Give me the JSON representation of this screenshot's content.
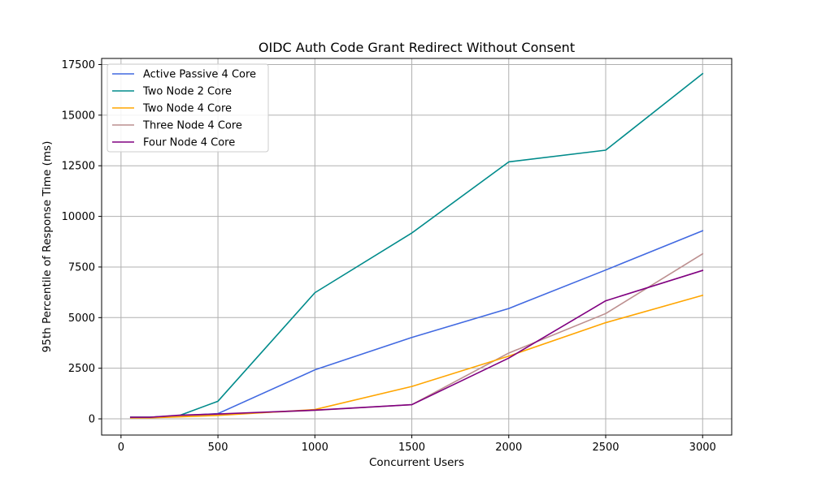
{
  "chart_data": {
    "type": "line",
    "title": "OIDC Auth Code Grant Redirect Without Consent",
    "xlabel": "Concurrent Users",
    "ylabel": "95th Percentile of Response Time (ms)",
    "xlim": [
      -100,
      3150
    ],
    "ylim": [
      -800,
      17800
    ],
    "x_ticks": [
      0,
      500,
      1000,
      1500,
      2000,
      2500,
      3000
    ],
    "y_ticks": [
      0,
      2500,
      5000,
      7500,
      10000,
      12500,
      15000,
      17500
    ],
    "grid": true,
    "legend_position": "top-left",
    "x": [
      50,
      150,
      300,
      500,
      1000,
      1500,
      2000,
      2500,
      3000
    ],
    "series": [
      {
        "name": "Active Passive 4 Core",
        "color": "#4169e1",
        "values": [
          80,
          80,
          150,
          260,
          2420,
          4020,
          5450,
          7350,
          9290
        ]
      },
      {
        "name": "Two Node 2 Core",
        "color": "#008b8b",
        "values": [
          80,
          80,
          160,
          870,
          6230,
          9180,
          12690,
          13270,
          17050
        ]
      },
      {
        "name": "Three Node 4 Core",
        "color": "#bc8f8f",
        "values": [
          50,
          60,
          130,
          220,
          420,
          700,
          3250,
          5200,
          8150
        ]
      },
      {
        "name": "Two Node 4 Core",
        "color": "#ffa500",
        "values": [
          50,
          50,
          100,
          170,
          460,
          1600,
          3100,
          4750,
          6100
        ]
      },
      {
        "name": "Four Node 4 Core",
        "color": "#800080",
        "values": [
          80,
          80,
          180,
          240,
          430,
          700,
          3000,
          5830,
          7330
        ]
      }
    ],
    "legend_order": [
      "Active Passive 4 Core",
      "Two Node 2 Core",
      "Two Node 4 Core",
      "Three Node 4 Core",
      "Four Node 4 Core"
    ]
  }
}
